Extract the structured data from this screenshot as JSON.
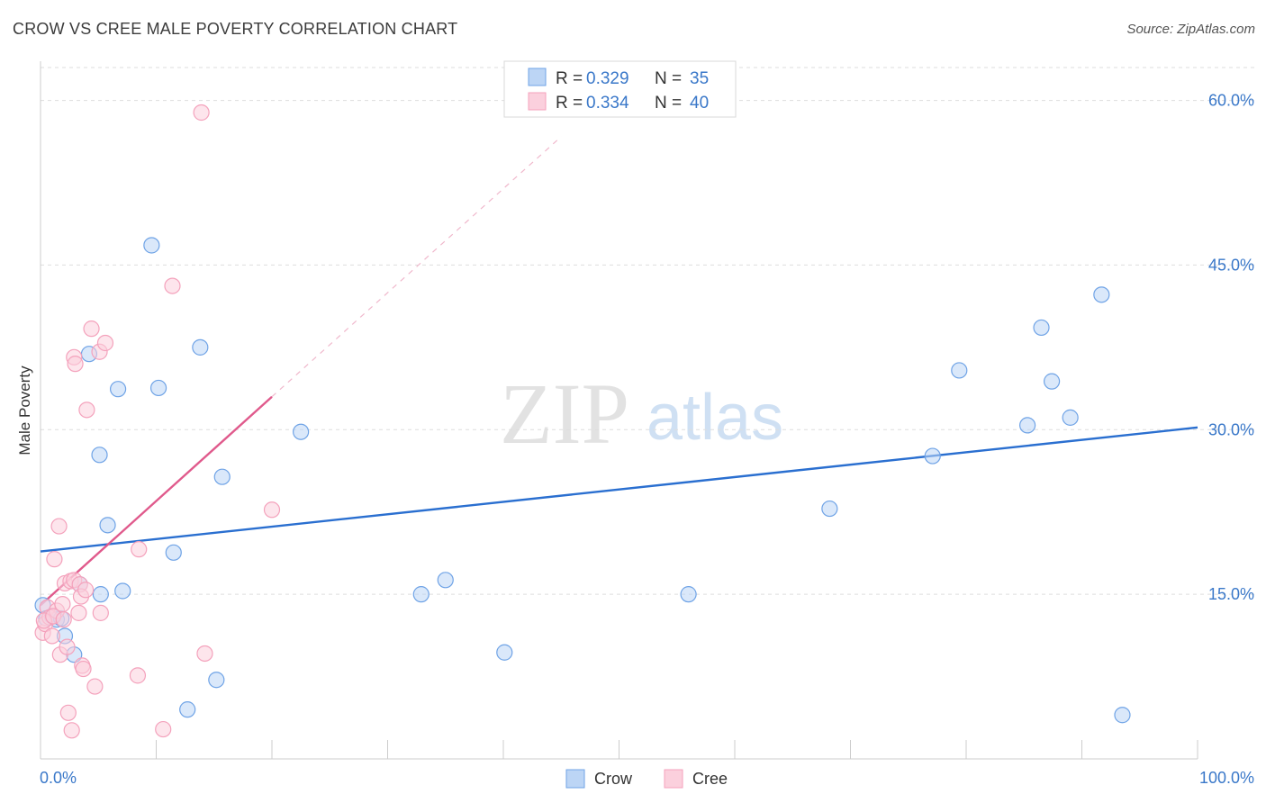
{
  "title": "CROW VS CREE MALE POVERTY CORRELATION CHART",
  "source": "Source: ZipAtlas.com",
  "watermark": {
    "zip": "ZIP",
    "atlas": "atlas"
  },
  "chart_data": {
    "type": "scatter",
    "xlabel": "",
    "ylabel": "Male Poverty",
    "xlim": [
      0,
      100
    ],
    "ylim": [
      0,
      63
    ],
    "x_tick_labels": [
      "0.0%",
      "100.0%"
    ],
    "y_ticks": [
      15,
      30,
      45,
      60
    ],
    "y_tick_labels": [
      "15.0%",
      "30.0%",
      "45.0%",
      "60.0%"
    ],
    "grid": true,
    "legend_position": "top-center",
    "series": [
      {
        "name": "Crow",
        "color": "#6fa3e6",
        "line_color": "#2a6fd0",
        "R": "0.329",
        "N": "35",
        "trend": {
          "x": [
            0,
            100
          ],
          "y": [
            18.9,
            30.2
          ],
          "style": "solid"
        },
        "points": [
          {
            "x": 0.2,
            "y": 14.0
          },
          {
            "x": 0.5,
            "y": 12.8
          },
          {
            "x": 1.0,
            "y": 13.0
          },
          {
            "x": 1.4,
            "y": 12.7
          },
          {
            "x": 1.8,
            "y": 12.8
          },
          {
            "x": 2.1,
            "y": 11.2
          },
          {
            "x": 2.9,
            "y": 9.5
          },
          {
            "x": 3.4,
            "y": 15.9
          },
          {
            "x": 4.2,
            "y": 36.9
          },
          {
            "x": 5.1,
            "y": 27.7
          },
          {
            "x": 5.2,
            "y": 15.0
          },
          {
            "x": 5.8,
            "y": 21.3
          },
          {
            "x": 6.7,
            "y": 33.7
          },
          {
            "x": 7.1,
            "y": 15.3
          },
          {
            "x": 9.6,
            "y": 46.8
          },
          {
            "x": 10.2,
            "y": 33.8
          },
          {
            "x": 11.5,
            "y": 18.8
          },
          {
            "x": 12.7,
            "y": 4.5
          },
          {
            "x": 13.8,
            "y": 37.5
          },
          {
            "x": 15.2,
            "y": 7.2
          },
          {
            "x": 15.7,
            "y": 25.7
          },
          {
            "x": 22.5,
            "y": 29.8
          },
          {
            "x": 32.9,
            "y": 15.0
          },
          {
            "x": 35.0,
            "y": 16.3
          },
          {
            "x": 40.1,
            "y": 9.7
          },
          {
            "x": 56.0,
            "y": 15.0
          },
          {
            "x": 68.2,
            "y": 22.8
          },
          {
            "x": 77.1,
            "y": 27.6
          },
          {
            "x": 79.4,
            "y": 35.4
          },
          {
            "x": 85.3,
            "y": 30.4
          },
          {
            "x": 86.5,
            "y": 39.3
          },
          {
            "x": 87.4,
            "y": 34.4
          },
          {
            "x": 89.0,
            "y": 31.1
          },
          {
            "x": 91.7,
            "y": 42.3
          },
          {
            "x": 93.5,
            "y": 4.0
          }
        ]
      },
      {
        "name": "Cree",
        "color": "#f4a2bc",
        "line_color": "#e05a8c",
        "R": "0.334",
        "N": "40",
        "trend": {
          "x": [
            0,
            20
          ],
          "y": [
            14.0,
            33.0
          ],
          "style": "solid"
        },
        "trend_extension": {
          "x": [
            20,
            45
          ],
          "y": [
            33.0,
            56.7
          ],
          "style": "dashed"
        },
        "points": [
          {
            "x": 0.2,
            "y": 11.5
          },
          {
            "x": 0.4,
            "y": 12.3
          },
          {
            "x": 0.6,
            "y": 13.8
          },
          {
            "x": 0.8,
            "y": 12.9
          },
          {
            "x": 1.0,
            "y": 11.2
          },
          {
            "x": 1.2,
            "y": 18.2
          },
          {
            "x": 1.4,
            "y": 13.5
          },
          {
            "x": 1.6,
            "y": 21.2
          },
          {
            "x": 1.7,
            "y": 9.5
          },
          {
            "x": 1.9,
            "y": 14.1
          },
          {
            "x": 2.1,
            "y": 16.0
          },
          {
            "x": 2.3,
            "y": 10.2
          },
          {
            "x": 2.4,
            "y": 4.2
          },
          {
            "x": 2.6,
            "y": 16.2
          },
          {
            "x": 2.7,
            "y": 2.6
          },
          {
            "x": 2.9,
            "y": 16.3
          },
          {
            "x": 2.9,
            "y": 36.6
          },
          {
            "x": 3.0,
            "y": 36.0
          },
          {
            "x": 3.3,
            "y": 13.3
          },
          {
            "x": 3.4,
            "y": 15.9
          },
          {
            "x": 3.5,
            "y": 14.8
          },
          {
            "x": 3.6,
            "y": 8.5
          },
          {
            "x": 3.7,
            "y": 8.2
          },
          {
            "x": 3.9,
            "y": 15.4
          },
          {
            "x": 4.0,
            "y": 31.8
          },
          {
            "x": 4.4,
            "y": 39.2
          },
          {
            "x": 4.7,
            "y": 6.6
          },
          {
            "x": 5.1,
            "y": 37.1
          },
          {
            "x": 5.2,
            "y": 13.3
          },
          {
            "x": 5.6,
            "y": 37.9
          },
          {
            "x": 8.4,
            "y": 7.6
          },
          {
            "x": 8.5,
            "y": 19.1
          },
          {
            "x": 10.6,
            "y": 2.7
          },
          {
            "x": 11.4,
            "y": 43.1
          },
          {
            "x": 14.2,
            "y": 9.6
          },
          {
            "x": 13.9,
            "y": 58.9
          },
          {
            "x": 20.0,
            "y": 22.7
          },
          {
            "x": 0.3,
            "y": 12.6
          },
          {
            "x": 1.1,
            "y": 13.0
          },
          {
            "x": 2.0,
            "y": 12.7
          }
        ]
      }
    ]
  }
}
